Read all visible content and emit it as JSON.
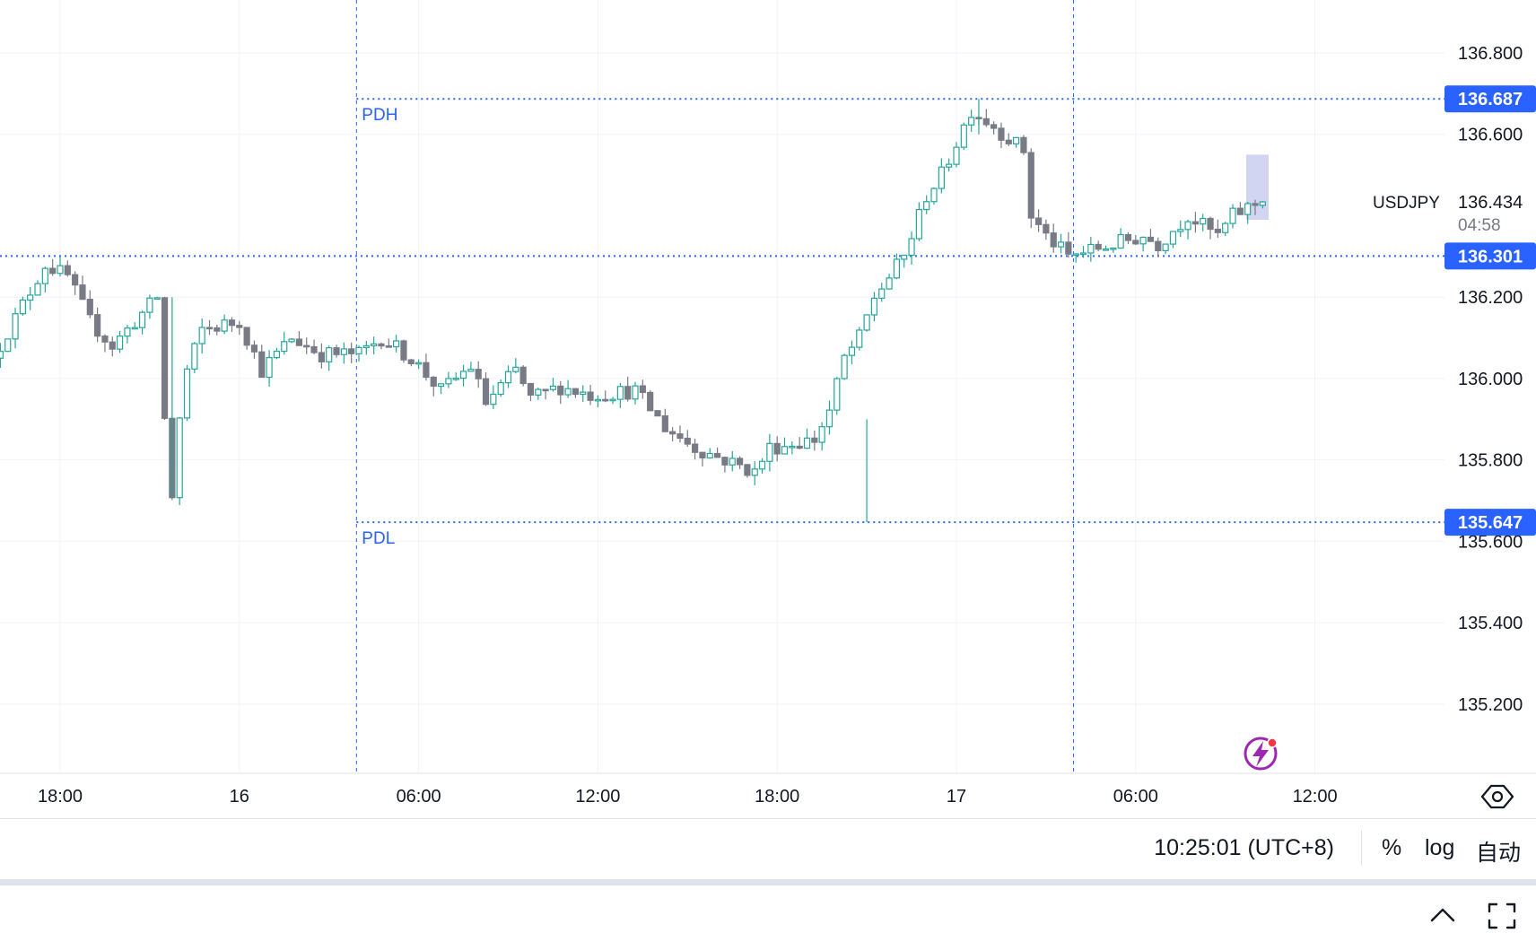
{
  "chart_data": {
    "type": "candlestick",
    "symbol": "USDJPY",
    "countdown": "04:58",
    "x_tick_labels": [
      "18:00",
      "16",
      "06:00",
      "12:00",
      "18:00",
      "17",
      "06:00",
      "12:00"
    ],
    "ylim": [
      135.03,
      136.93
    ],
    "y_tick_labels": [
      "136.800",
      "136.600",
      "136.200",
      "136.000",
      "135.800",
      "135.600",
      "135.400",
      "135.200"
    ],
    "y_ticks": [
      136.8,
      136.6,
      136.2,
      136.0,
      135.8,
      135.6,
      135.4,
      135.2
    ],
    "last_price": {
      "label": "136.434",
      "value": 136.434,
      "color": "#26a69a"
    },
    "levels": [
      {
        "name": "PDH",
        "label": "136.687",
        "value": 136.687
      },
      {
        "name": "",
        "label": "136.301",
        "value": 136.301
      },
      {
        "name": "PDL",
        "label": "135.647",
        "value": 135.647
      }
    ],
    "session_breaks": [
      "16 05:00",
      "17 05:00"
    ],
    "anchors": [
      {
        "t": "15 16:00",
        "p": 136.05
      },
      {
        "t": "15 17:45",
        "p": 136.28
      },
      {
        "t": "15 18:30",
        "p": 136.25
      },
      {
        "t": "15 19:15",
        "p": 136.14
      },
      {
        "t": "15 20:00",
        "p": 136.08
      },
      {
        "t": "15 21:00",
        "p": 136.16
      },
      {
        "t": "15 21:30",
        "p": 136.2
      },
      {
        "t": "15 21:45",
        "p": 135.9
      },
      {
        "t": "15 22:00",
        "p": 135.71
      },
      {
        "t": "15 22:15",
        "p": 135.9
      },
      {
        "t": "15 22:30",
        "p": 136.02
      },
      {
        "t": "15 23:00",
        "p": 136.12
      },
      {
        "t": "16 00:15",
        "p": 136.14
      },
      {
        "t": "16 01:00",
        "p": 136.02
      },
      {
        "t": "16 02:00",
        "p": 136.1
      },
      {
        "t": "16 03:00",
        "p": 136.06
      },
      {
        "t": "16 04:15",
        "p": 136.06
      },
      {
        "t": "16 05:00",
        "p": 136.1
      },
      {
        "t": "16 06:00",
        "p": 136.05
      },
      {
        "t": "16 07:00",
        "p": 135.97
      },
      {
        "t": "16 08:00",
        "p": 136.03
      },
      {
        "t": "16 08:30",
        "p": 135.94
      },
      {
        "t": "16 09:30",
        "p": 136.02
      },
      {
        "t": "16 10:00",
        "p": 135.95
      },
      {
        "t": "16 11:00",
        "p": 135.98
      },
      {
        "t": "16 12:00",
        "p": 135.96
      },
      {
        "t": "16 13:30",
        "p": 135.97
      },
      {
        "t": "16 14:30",
        "p": 135.88
      },
      {
        "t": "16 15:30",
        "p": 135.83
      },
      {
        "t": "16 17:30",
        "p": 135.77
      },
      {
        "t": "16 18:00",
        "p": 135.83
      },
      {
        "t": "16 19:30",
        "p": 135.85
      },
      {
        "t": "16 20:00",
        "p": 135.92
      },
      {
        "t": "16 20:30",
        "p": 136.05
      },
      {
        "t": "16 21:00",
        "p": 136.1
      },
      {
        "t": "16 21:30",
        "p": 136.2
      },
      {
        "t": "16 22:30",
        "p": 136.3
      },
      {
        "t": "16 23:15",
        "p": 136.45
      },
      {
        "t": "16 23:45",
        "p": 136.5
      },
      {
        "t": "17 00:15",
        "p": 136.58
      },
      {
        "t": "17 00:45",
        "p": 136.66
      },
      {
        "t": "17 01:30",
        "p": 136.62
      },
      {
        "t": "17 02:30",
        "p": 136.56
      },
      {
        "t": "17 02:45",
        "p": 136.4
      },
      {
        "t": "17 03:15",
        "p": 136.35
      },
      {
        "t": "17 04:00",
        "p": 136.3
      },
      {
        "t": "17 05:00",
        "p": 136.32
      },
      {
        "t": "17 06:30",
        "p": 136.35
      },
      {
        "t": "17 07:00",
        "p": 136.33
      },
      {
        "t": "17 08:00",
        "p": 136.4
      },
      {
        "t": "17 09:00",
        "p": 136.35
      },
      {
        "t": "17 09:30",
        "p": 136.4
      },
      {
        "t": "17 10:00",
        "p": 136.42
      },
      {
        "t": "17 10:25",
        "p": 136.434
      }
    ]
  },
  "bottom_bar": {
    "time": "10:25:01 (UTC+8)",
    "percent": "%",
    "log": "log",
    "auto": "自动"
  },
  "colors": {
    "up": "#26a69a",
    "down": "#787b86",
    "level": "#2962ff",
    "grid": "#f0f3fa",
    "axis_text": "#131722",
    "current_bar_highlight": "#c5cbef",
    "lightning": "#9c27b0"
  },
  "icons": {
    "settings": "gear-icon",
    "chevron": "chevron-up-icon",
    "fullscreen": "fullscreen-icon",
    "lightning": "lightning-icon"
  }
}
